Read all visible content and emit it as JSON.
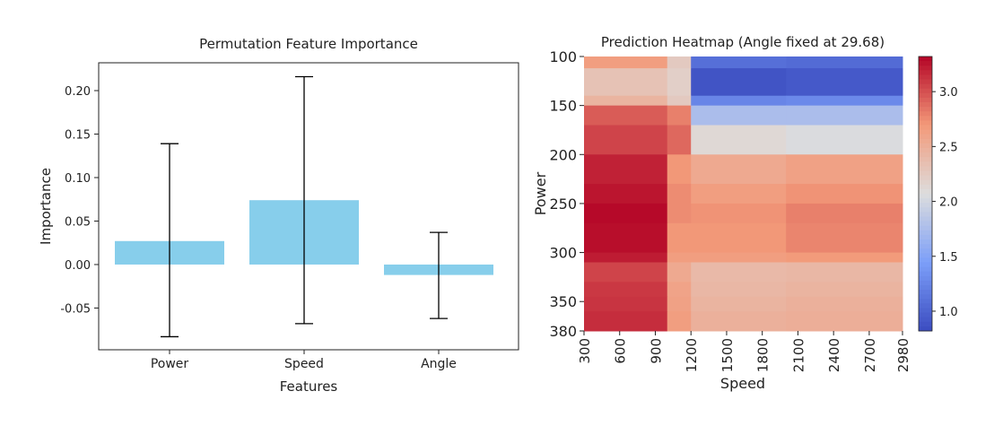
{
  "chart_data": [
    {
      "type": "bar",
      "title": "Permutation Feature Importance",
      "xlabel": "Features",
      "ylabel": "Importance",
      "categories": [
        "Power",
        "Speed",
        "Angle"
      ],
      "values": [
        0.027,
        0.074,
        -0.012
      ],
      "error_low": [
        -0.083,
        -0.068,
        -0.062
      ],
      "error_high": [
        0.139,
        0.216,
        0.037
      ],
      "ylim": [
        -0.098,
        0.232
      ],
      "yticks": [
        -0.05,
        0.0,
        0.05,
        0.1,
        0.15,
        0.2
      ],
      "ytick_labels": [
        "-0.05",
        "0.00",
        "0.05",
        "0.10",
        "0.15",
        "0.20"
      ],
      "bar_color": "#87CEEB",
      "error_color": "#000000",
      "grid": false
    },
    {
      "type": "heatmap",
      "title": "Prediction Heatmap (Angle fixed at 29.68)",
      "xlabel": "Speed",
      "ylabel": "Power",
      "xticks": [
        300,
        600,
        900,
        1200,
        1500,
        1800,
        2100,
        2400,
        2700,
        2980
      ],
      "yticks": [
        100,
        150,
        200,
        250,
        300,
        350,
        380
      ],
      "xrange": [
        300,
        2980
      ],
      "yrange": [
        100,
        380
      ],
      "colormap": "coolwarm",
      "vmin": 0.82,
      "vmax": 3.32,
      "colorbar_ticks": [
        1.0,
        1.5,
        2.0,
        2.5,
        3.0
      ],
      "colorbar_tick_labels": [
        "1.0",
        "1.5",
        "2.0",
        "2.5",
        "3.0"
      ],
      "column_edges": [
        300,
        1000,
        1200,
        2000,
        2980
      ],
      "row_edges": [
        100,
        112,
        140,
        150,
        170,
        200,
        230,
        250,
        270,
        300,
        310,
        330,
        345,
        360,
        380
      ],
      "values": [
        [
          2.65,
          2.25,
          1.08,
          1.05
        ],
        [
          2.32,
          2.2,
          0.88,
          0.92
        ],
        [
          2.45,
          2.25,
          1.25,
          1.28
        ],
        [
          2.95,
          2.8,
          1.75,
          1.75
        ],
        [
          3.05,
          2.9,
          2.12,
          2.05
        ],
        [
          3.2,
          2.7,
          2.55,
          2.62
        ],
        [
          3.25,
          2.75,
          2.65,
          2.72
        ],
        [
          3.3,
          2.75,
          2.72,
          2.8
        ],
        [
          3.28,
          2.7,
          2.7,
          2.78
        ],
        [
          3.22,
          2.65,
          2.65,
          2.68
        ],
        [
          3.05,
          2.55,
          2.4,
          2.42
        ],
        [
          3.1,
          2.6,
          2.42,
          2.45
        ],
        [
          3.12,
          2.62,
          2.45,
          2.48
        ],
        [
          3.15,
          2.65,
          2.48,
          2.5
        ]
      ]
    }
  ]
}
